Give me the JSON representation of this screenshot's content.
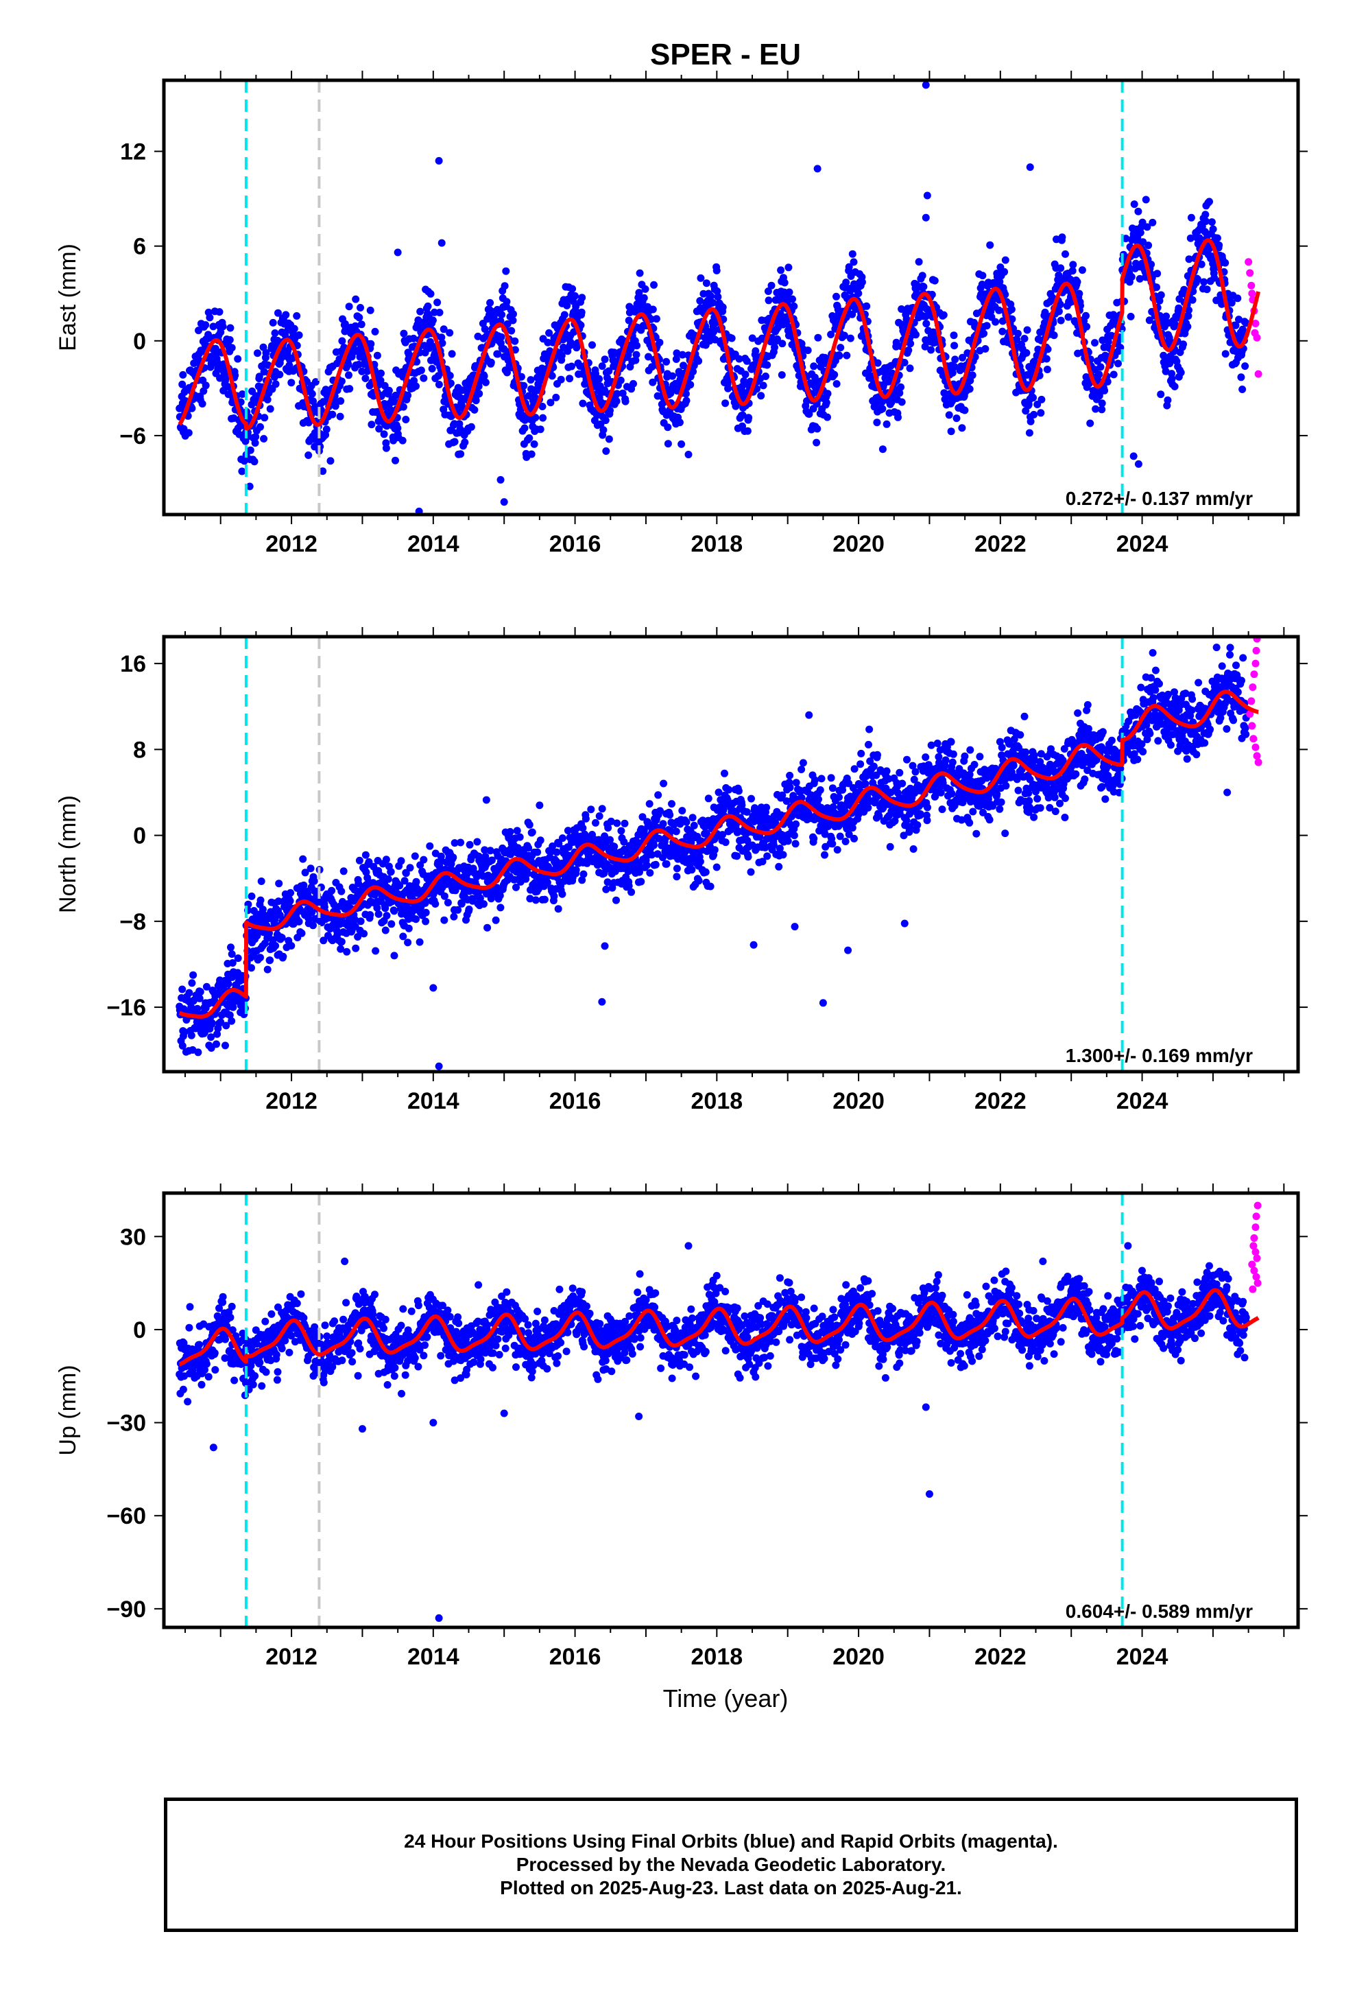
{
  "title": "SPER - EU",
  "xlabel": "Time (year)",
  "footer": {
    "line1": "24 Hour Positions Using Final Orbits (blue) and Rapid Orbits (magenta).",
    "line2": "Processed by the Nevada Geodetic Laboratory.",
    "line3": "Plotted on 2025-Aug-23. Last data on 2025-Aug-21."
  },
  "colors": {
    "final": "#0000ff",
    "rapid": "#ff00ff",
    "model": "#ff0000",
    "equip_change": "#00e5ee",
    "other_event": "#c8c8c8"
  },
  "chart_data": [
    {
      "type": "scatter",
      "component": "east",
      "ylabel": "East (mm)",
      "xlim": [
        2010.2,
        2026.2
      ],
      "ylim": [
        -11,
        16.5
      ],
      "yticks": [
        -6,
        0,
        6,
        12
      ],
      "xticks": [
        2012,
        2014,
        2016,
        2018,
        2020,
        2022,
        2024
      ],
      "rate_label": "0.272+/- 0.137 mm/yr",
      "first_epoch": 2010.42,
      "last_final_epoch": 2025.47,
      "last_epoch": 2025.64,
      "vertical_lines": [
        {
          "x": 2011.36,
          "color": "cyan"
        },
        {
          "x": 2012.39,
          "color": "gray"
        },
        {
          "x": 2023.72,
          "color": "cyan"
        }
      ],
      "model": {
        "segments": [
          {
            "start": 2010.42,
            "end": 2011.36,
            "offset": -1.2
          },
          {
            "start": 2011.36,
            "end": 2023.72,
            "offset": -1.5
          },
          {
            "start": 2023.72,
            "end": 2025.64,
            "offset": 0.6
          }
        ],
        "rate": 0.272,
        "ref_epoch": 2016.0,
        "annual_amp_start": 2.6,
        "annual_amp_end": 3.4,
        "annual_phase": 2.2,
        "semi_amp": 0.3,
        "semi_phase": 1.0
      },
      "scatter_sigma": 1.3,
      "outliers": [
        {
          "x": 2014.08,
          "y": 11.4
        },
        {
          "x": 2014.12,
          "y": 6.2
        },
        {
          "x": 2013.8,
          "y": -10.8
        },
        {
          "x": 2015.0,
          "y": -10.2
        },
        {
          "x": 2014.95,
          "y": -8.8
        },
        {
          "x": 2020.95,
          "y": 16.2
        },
        {
          "x": 2020.97,
          "y": 9.2
        },
        {
          "x": 2020.95,
          "y": 7.8
        },
        {
          "x": 2019.42,
          "y": 10.9
        },
        {
          "x": 2022.42,
          "y": 11.0
        },
        {
          "x": 2012.55,
          "y": -7.6
        },
        {
          "x": 2017.6,
          "y": -7.2
        },
        {
          "x": 2023.95,
          "y": -7.8
        },
        {
          "x": 2023.88,
          "y": -7.3
        },
        {
          "x": 2013.5,
          "y": 5.6
        }
      ],
      "rapid_points": [
        {
          "x": 2025.5,
          "y": 5.0
        },
        {
          "x": 2025.52,
          "y": 4.3
        },
        {
          "x": 2025.54,
          "y": 3.5
        },
        {
          "x": 2025.56,
          "y": 2.6
        },
        {
          "x": 2025.58,
          "y": 1.9
        },
        {
          "x": 2025.6,
          "y": 1.1
        },
        {
          "x": 2025.62,
          "y": 0.2
        },
        {
          "x": 2025.64,
          "y": -2.1
        },
        {
          "x": 2025.55,
          "y": 3.0
        },
        {
          "x": 2025.59,
          "y": 0.5
        }
      ]
    },
    {
      "type": "scatter",
      "component": "north",
      "ylabel": "North (mm)",
      "xlim": [
        2010.2,
        2026.2
      ],
      "ylim": [
        -22,
        18.5
      ],
      "yticks": [
        -16,
        -8,
        0,
        8,
        16
      ],
      "xticks": [
        2012,
        2014,
        2016,
        2018,
        2020,
        2022,
        2024
      ],
      "rate_label": "1.300+/- 0.169 mm/yr",
      "first_epoch": 2010.42,
      "last_final_epoch": 2025.47,
      "last_epoch": 2025.64,
      "vertical_lines": [
        {
          "x": 2011.36,
          "color": "cyan"
        },
        {
          "x": 2012.39,
          "color": "gray"
        },
        {
          "x": 2023.72,
          "color": "cyan"
        }
      ],
      "model": {
        "segments": [
          {
            "start": 2010.42,
            "end": 2011.36,
            "offset": -9.2
          },
          {
            "start": 2011.36,
            "end": 2023.72,
            "offset": -2.3
          },
          {
            "start": 2023.72,
            "end": 2025.64,
            "offset": 0.0
          }
        ],
        "rate": 1.3,
        "ref_epoch": 2016.0,
        "annual_amp_start": 0.9,
        "annual_amp_end": 1.3,
        "annual_phase": 0.4,
        "semi_amp": 0.2,
        "semi_phase": 0.0
      },
      "scatter_sigma": 1.6,
      "outliers": [
        {
          "x": 2010.95,
          "y": -18.5
        },
        {
          "x": 2010.9,
          "y": -16.5
        },
        {
          "x": 2014.08,
          "y": -21.5
        },
        {
          "x": 2014.0,
          "y": -14.2
        },
        {
          "x": 2016.38,
          "y": -15.5
        },
        {
          "x": 2016.42,
          "y": -10.3
        },
        {
          "x": 2019.85,
          "y": -10.7
        },
        {
          "x": 2019.5,
          "y": -15.6
        },
        {
          "x": 2019.1,
          "y": -8.5
        },
        {
          "x": 2013.45,
          "y": -11.2
        },
        {
          "x": 2015.5,
          "y": 2.8
        },
        {
          "x": 2014.75,
          "y": 3.3
        },
        {
          "x": 2019.3,
          "y": 11.2
        },
        {
          "x": 2024.15,
          "y": 17.0
        },
        {
          "x": 2025.05,
          "y": 17.5
        },
        {
          "x": 2018.52,
          "y": -10.2
        },
        {
          "x": 2020.65,
          "y": -8.2
        },
        {
          "x": 2025.2,
          "y": 4.0
        }
      ],
      "rapid_points": [
        {
          "x": 2025.62,
          "y": 18.3
        },
        {
          "x": 2025.61,
          "y": 17.2
        },
        {
          "x": 2025.6,
          "y": 16.0
        },
        {
          "x": 2025.58,
          "y": 15.0
        },
        {
          "x": 2025.56,
          "y": 13.8
        },
        {
          "x": 2025.54,
          "y": 12.5
        },
        {
          "x": 2025.52,
          "y": 11.3
        },
        {
          "x": 2025.55,
          "y": 10.2
        },
        {
          "x": 2025.57,
          "y": 9.0
        },
        {
          "x": 2025.6,
          "y": 8.2
        },
        {
          "x": 2025.62,
          "y": 7.4
        },
        {
          "x": 2025.64,
          "y": 6.8
        }
      ]
    },
    {
      "type": "scatter",
      "component": "up",
      "ylabel": "Up (mm)",
      "xlim": [
        2010.2,
        2026.2
      ],
      "ylim": [
        -96,
        44
      ],
      "yticks": [
        -90,
        -60,
        -30,
        0,
        30
      ],
      "xticks": [
        2012,
        2014,
        2016,
        2018,
        2020,
        2022,
        2024
      ],
      "rate_label": "0.604+/- 0.589 mm/yr",
      "first_epoch": 2010.42,
      "last_final_epoch": 2025.47,
      "last_epoch": 2025.64,
      "vertical_lines": [
        {
          "x": 2011.36,
          "color": "cyan"
        },
        {
          "x": 2012.39,
          "color": "gray"
        },
        {
          "x": 2023.72,
          "color": "cyan"
        }
      ],
      "model": {
        "segments": [
          {
            "start": 2010.42,
            "end": 2011.36,
            "offset": -3.0
          },
          {
            "start": 2011.36,
            "end": 2023.72,
            "offset": -1.0
          },
          {
            "start": 2023.72,
            "end": 2025.64,
            "offset": 0.5
          }
        ],
        "rate": 0.604,
        "ref_epoch": 2016.0,
        "annual_amp_start": 5.0,
        "annual_amp_end": 5.5,
        "annual_phase": 1.6,
        "semi_amp": 1.5,
        "semi_phase": 0.8
      },
      "scatter_sigma": 4.5,
      "outliers": [
        {
          "x": 2014.08,
          "y": -93.0
        },
        {
          "x": 2021.0,
          "y": -53.0
        },
        {
          "x": 2020.95,
          "y": -25.0
        },
        {
          "x": 2010.9,
          "y": -38.0
        },
        {
          "x": 2013.0,
          "y": -32.0
        },
        {
          "x": 2014.0,
          "y": -30.0
        },
        {
          "x": 2016.9,
          "y": -28.0
        },
        {
          "x": 2015.0,
          "y": -27.0
        },
        {
          "x": 2017.6,
          "y": 27.0
        },
        {
          "x": 2012.75,
          "y": 22.0
        },
        {
          "x": 2023.8,
          "y": 27.0
        },
        {
          "x": 2022.6,
          "y": 22.0
        }
      ],
      "rapid_points": [
        {
          "x": 2025.63,
          "y": 40.0
        },
        {
          "x": 2025.61,
          "y": 36.5
        },
        {
          "x": 2025.6,
          "y": 33.0
        },
        {
          "x": 2025.58,
          "y": 29.5
        },
        {
          "x": 2025.57,
          "y": 27.0
        },
        {
          "x": 2025.6,
          "y": 25.0
        },
        {
          "x": 2025.62,
          "y": 23.0
        },
        {
          "x": 2025.55,
          "y": 21.0
        },
        {
          "x": 2025.58,
          "y": 19.0
        },
        {
          "x": 2025.61,
          "y": 17.0
        },
        {
          "x": 2025.63,
          "y": 15.0
        },
        {
          "x": 2025.56,
          "y": 13.0
        }
      ]
    }
  ]
}
